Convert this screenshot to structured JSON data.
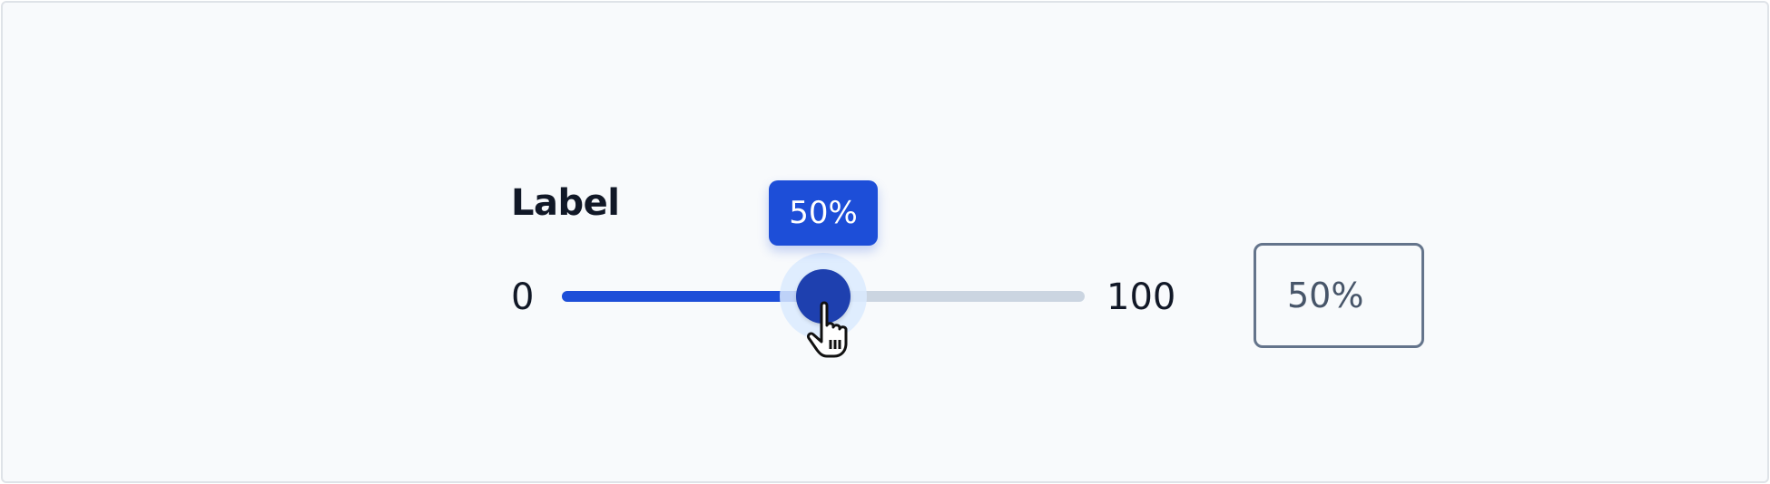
{
  "slider": {
    "label": "Label",
    "min_label": "0",
    "max_label": "100",
    "min": 0,
    "max": 100,
    "value": 50,
    "tooltip": "50%",
    "input_value": "50%"
  },
  "colors": {
    "fill": "#1d4ed8",
    "track": "#cbd5e1",
    "thumb": "#1e40af",
    "text": "#111827"
  },
  "icons": {
    "cursor": "hand-pointer-icon"
  }
}
